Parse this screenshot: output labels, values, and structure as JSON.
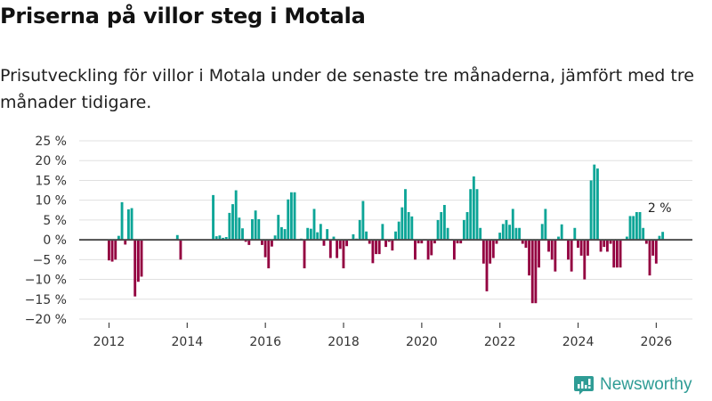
{
  "title": "Priserna på villor steg i Motala",
  "subtitle": "Prisutveckling för villor i Motala under de senaste tre månaderna, jämfört med tre månader tidigare.",
  "brand": {
    "name": "Newsworthy",
    "color": "#2f9c95"
  },
  "colors": {
    "positive": "#0ca597",
    "negative": "#930040",
    "zero_line": "#4d4d4d",
    "grid": "#e0e0e0"
  },
  "chart_data": {
    "type": "bar",
    "title": "Priserna på villor steg i Motala",
    "xlabel": "",
    "ylabel": "",
    "ylim": [
      -20,
      25
    ],
    "y_ticks": [
      25,
      20,
      15,
      10,
      5,
      0,
      -5,
      -10,
      -15,
      -20
    ],
    "y_tick_labels": [
      "25 %",
      "20 %",
      "15 %",
      "10 %",
      "5 %",
      "0 %",
      "−5 %",
      "−10 %",
      "−15 %",
      "−20 %"
    ],
    "x_ticks": [
      "2012",
      "2014",
      "2016",
      "2018",
      "2020",
      "2022",
      "2024",
      "2026"
    ],
    "x_start": "2012-01",
    "x_end": "2026-03",
    "frequency": "monthly",
    "grid": true,
    "annotation": {
      "label": "2 %",
      "at": "last"
    },
    "values": [
      -5.2,
      -5.5,
      -5.0,
      1.0,
      9.5,
      -1.2,
      7.7,
      8.0,
      -14.3,
      -10.6,
      -9.3,
      null,
      null,
      null,
      null,
      null,
      null,
      null,
      null,
      null,
      null,
      1.2,
      -5.0,
      null,
      null,
      null,
      null,
      null,
      null,
      null,
      null,
      null,
      11.3,
      0.9,
      1.1,
      0.5,
      0.7,
      6.8,
      9.0,
      12.5,
      5.6,
      2.9,
      -0.5,
      -1.3,
      5.2,
      7.4,
      5.2,
      -1.3,
      -4.4,
      -7.2,
      -1.7,
      1.1,
      6.3,
      3.2,
      2.7,
      10.2,
      12.0,
      12.0,
      null,
      0.3,
      -7.2,
      3.0,
      2.8,
      7.8,
      1.9,
      4.0,
      -1.5,
      2.7,
      -4.6,
      0.8,
      -4.6,
      -2.3,
      -7.2,
      -1.6,
      null,
      1.4,
      0.3,
      5.0,
      9.8,
      2.1,
      -1.0,
      -5.9,
      -3.6,
      -3.6,
      4.0,
      -1.8,
      -0.5,
      -2.7,
      2.1,
      4.6,
      8.2,
      12.8,
      7.0,
      5.9,
      -5.0,
      -0.9,
      -0.9,
      null,
      -5.0,
      -3.9,
      -0.9,
      5.0,
      7.0,
      8.8,
      3.0,
      null,
      -5.0,
      -0.9,
      -0.9,
      5.0,
      7.0,
      12.8,
      16.0,
      12.8,
      3.0,
      -6.0,
      -13.0,
      -6.0,
      -4.6,
      -1.0,
      1.8,
      4.0,
      5.0,
      3.8,
      7.8,
      3.0,
      3.0,
      -1.0,
      -2.0,
      -9.0,
      -16.0,
      -16.0,
      -7.0,
      4.0,
      7.8,
      -3.0,
      -5.0,
      -8.0,
      0.8,
      3.9,
      null,
      -5.0,
      -8.0,
      3.0,
      -2.0,
      -4.0,
      -10.0,
      -4.0,
      15.0,
      19.0,
      18.0,
      -3.0,
      -1.8,
      -3.0,
      -1.0,
      -7.0,
      -7.0,
      -7.0,
      null,
      0.8,
      6.0,
      6.0,
      7.0,
      7.0,
      3.0,
      -1.0,
      -9.0,
      -4.0,
      -6.0,
      1.0,
      2.0
    ]
  }
}
